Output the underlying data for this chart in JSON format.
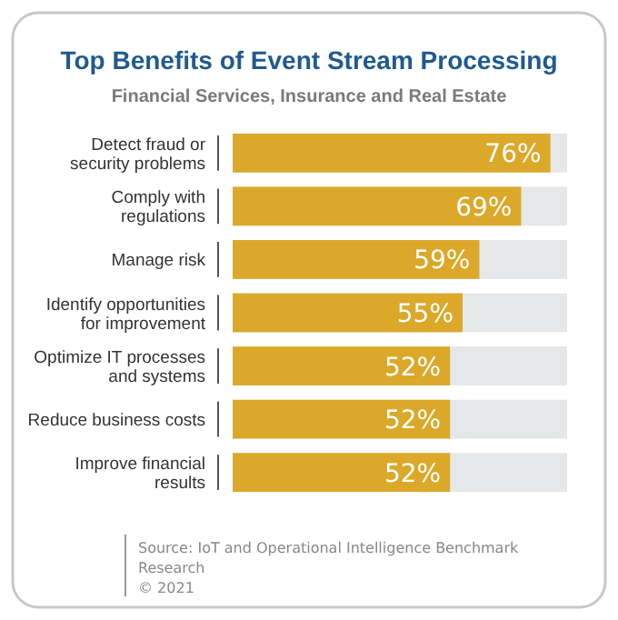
{
  "chart_data": {
    "type": "bar",
    "orientation": "horizontal",
    "title": "Top Benefits of Event Stream Processing",
    "subtitle": "Financial Services, Insurance and Real Estate",
    "categories": [
      "Detect fraud or security problems",
      "Comply with regulations",
      "Manage risk",
      "Identify opportunities for improvement",
      "Optimize IT processes and systems",
      "Reduce business costs",
      "Improve financial results"
    ],
    "values": [
      76,
      69,
      59,
      55,
      52,
      52,
      52
    ],
    "value_labels": [
      "76%",
      "69%",
      "59%",
      "55%",
      "52%",
      "52%",
      "52%"
    ],
    "color": "#dba829",
    "xlim": [
      0,
      80
    ],
    "tick_labels": "y",
    "annotations": [
      "Source: IoT and Operational Intelligence Benchmark Research",
      "© 2021"
    ]
  }
}
